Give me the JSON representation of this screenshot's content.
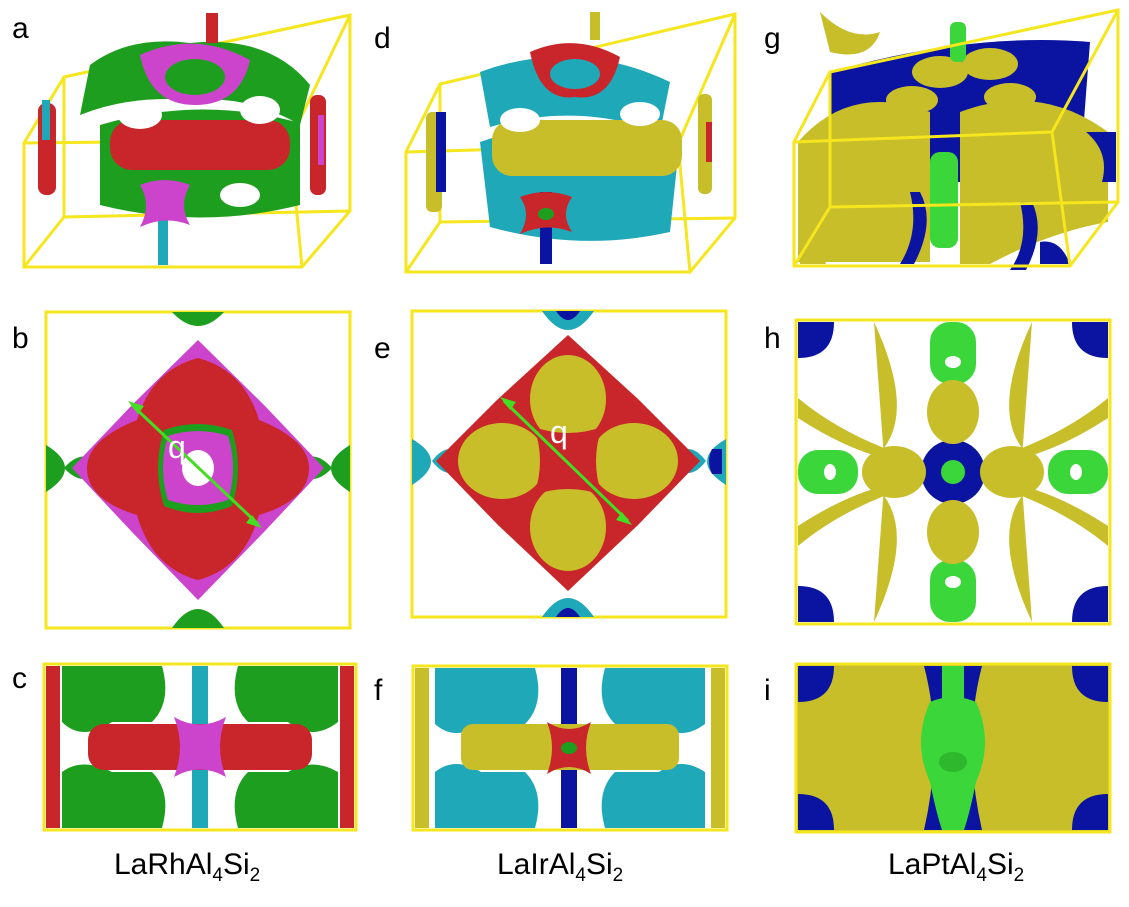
{
  "panel_labels": {
    "a": "a",
    "b": "b",
    "c": "c",
    "d": "d",
    "e": "e",
    "f": "f",
    "g": "g",
    "h": "h",
    "i": "i"
  },
  "q_label": "q",
  "compounds": [
    {
      "main": "LaRhAl",
      "sub1": "4",
      "mid": "Si",
      "sub2": "2"
    },
    {
      "main": "LaIrAl",
      "sub1": "4",
      "mid": "Si",
      "sub2": "2"
    },
    {
      "main": "LaPtAl",
      "sub1": "4",
      "mid": "Si",
      "sub2": "2"
    }
  ],
  "colors": {
    "frame": "#f5e61e",
    "green": "#1e9e1e",
    "red": "#c8262a",
    "magenta": "#cc44cc",
    "cyan": "#1fa8b8",
    "yellow": "#c8be2a",
    "blue": "#0a14a0",
    "bright_green": "#3ad63a",
    "arrow": "#44dd22"
  }
}
